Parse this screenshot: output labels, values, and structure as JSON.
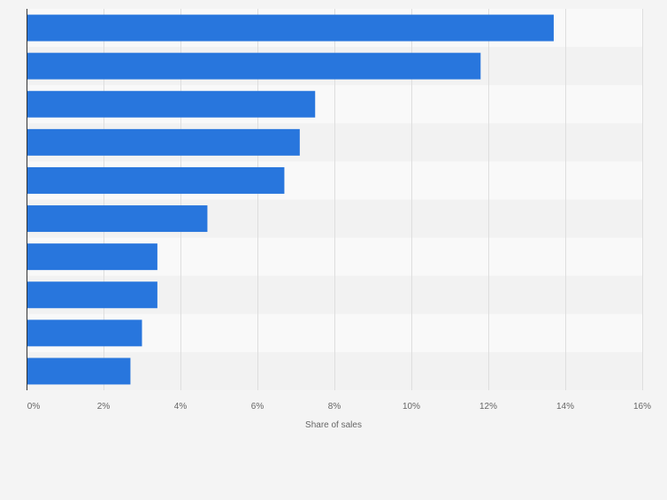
{
  "chart_data": {
    "type": "bar",
    "orientation": "horizontal",
    "categories": [
      "",
      "",
      "",
      "",
      "",
      "",
      "",
      "",
      "",
      ""
    ],
    "values": [
      13.7,
      11.8,
      7.5,
      7.1,
      6.7,
      4.7,
      3.4,
      3.4,
      3.0,
      2.7
    ],
    "title": "",
    "xlabel": "Share of sales",
    "ylabel": "",
    "xlim": [
      0,
      16
    ],
    "xticks": [
      0,
      2,
      4,
      6,
      8,
      10,
      12,
      14,
      16
    ],
    "tick_labels": [
      "0%",
      "2%",
      "4%",
      "6%",
      "8%",
      "10%",
      "12%",
      "14%",
      "16%"
    ],
    "grid": true,
    "colors": {
      "bar": "#2876dd",
      "page_background": "#f4f4f4",
      "band_light": "#f9f9f9",
      "band_dark": "#f2f2f2",
      "grid": "#dedede",
      "axis": "#333333",
      "tick_text": "#666666"
    }
  }
}
